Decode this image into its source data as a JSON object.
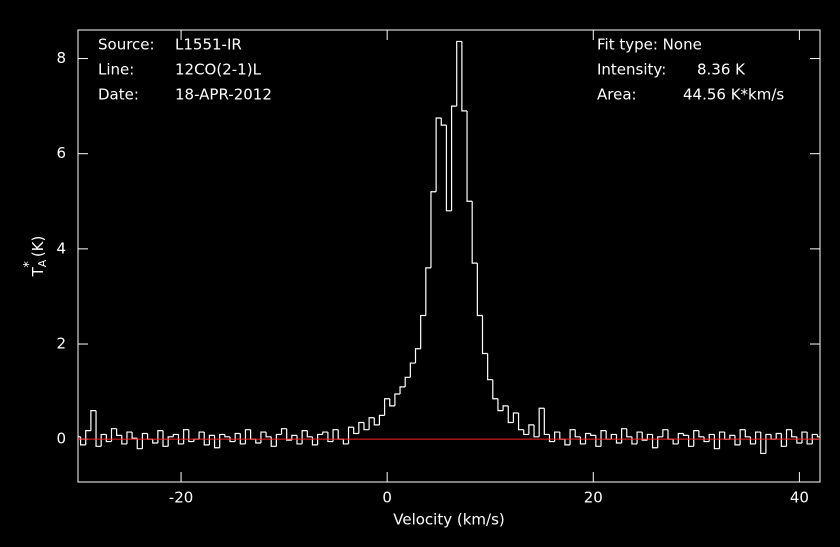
{
  "chart_data": {
    "type": "step",
    "xlabel": "Velocity (km/s)",
    "ylabel": {
      "main": "T",
      "sub": "A",
      "sup": "*",
      "unit": "(K)"
    },
    "annotations": {
      "left": [
        {
          "label": "Source:",
          "value": "L1551-IR"
        },
        {
          "label": "Line:",
          "value": "12CO(2-1)L"
        },
        {
          "label": "Date:",
          "value": "18-APR-2012"
        }
      ],
      "fit": "Fit type: None",
      "right": [
        {
          "label": "Intensity:",
          "value": "8.36 K"
        },
        {
          "label": "Area:",
          "value": "44.56 K*km/s"
        }
      ]
    },
    "xlim": [
      -30,
      42
    ],
    "ylim": [
      -0.9,
      8.6
    ],
    "xticks": [
      -20,
      0,
      20,
      40
    ],
    "yticks": [
      0,
      2,
      4,
      6,
      8
    ],
    "baseline": 0,
    "baseline_color": "#ff2020",
    "series": [
      {
        "color": "#ffffff",
        "x": [
          -30,
          -29.5,
          -29,
          -28.5,
          -28,
          -27.5,
          -27,
          -26.5,
          -26,
          -25.5,
          -25,
          -24.5,
          -24,
          -23.5,
          -23,
          -22.5,
          -22,
          -21.5,
          -21,
          -20.5,
          -20,
          -19.5,
          -19,
          -18.5,
          -18,
          -17.5,
          -17,
          -16.5,
          -16,
          -15.5,
          -15,
          -14.5,
          -14,
          -13.5,
          -13,
          -12.5,
          -12,
          -11.5,
          -11,
          -10.5,
          -10,
          -9.5,
          -9,
          -8.5,
          -8,
          -7.5,
          -7,
          -6.5,
          -6,
          -5.5,
          -5,
          -4.5,
          -4,
          -3.5,
          -3,
          -2.5,
          -2,
          -1.5,
          -1,
          -0.5,
          0,
          0.5,
          1,
          1.5,
          2,
          2.5,
          3,
          3.5,
          4,
          4.5,
          5,
          5.5,
          6,
          6.5,
          7,
          7.5,
          8,
          8.5,
          9,
          9.5,
          10,
          10.5,
          11,
          11.5,
          12,
          12.5,
          13,
          13.5,
          14,
          14.5,
          15,
          15.5,
          16,
          16.5,
          17,
          17.5,
          18,
          18.5,
          19,
          19.5,
          20,
          20.5,
          21,
          21.5,
          22,
          22.5,
          23,
          23.5,
          24,
          24.5,
          25,
          25.5,
          26,
          26.5,
          27,
          27.5,
          28,
          28.5,
          29,
          29.5,
          30,
          30.5,
          31,
          31.5,
          32,
          32.5,
          33,
          33.5,
          34,
          34.5,
          35,
          35.5,
          36,
          36.5,
          37,
          37.5,
          38,
          38.5,
          39,
          39.5,
          40,
          40.5,
          41,
          41.5,
          42
        ],
        "values": [
          0.05,
          -0.12,
          0.18,
          0.6,
          -0.15,
          0.1,
          -0.05,
          0.22,
          0.08,
          -0.1,
          0.15,
          0.02,
          -0.2,
          0.12,
          0.0,
          -0.08,
          0.18,
          -0.15,
          0.05,
          0.1,
          -0.1,
          0.2,
          -0.05,
          0.0,
          0.15,
          -0.12,
          0.08,
          -0.18,
          0.1,
          0.05,
          -0.05,
          0.12,
          -0.1,
          0.2,
          0.0,
          -0.08,
          0.15,
          0.05,
          -0.15,
          0.1,
          0.22,
          -0.02,
          0.08,
          -0.1,
          0.18,
          0.05,
          -0.12,
          0.1,
          0.15,
          -0.05,
          0.2,
          0.0,
          -0.1,
          0.25,
          0.12,
          0.35,
          0.2,
          0.45,
          0.3,
          0.5,
          0.85,
          0.7,
          0.95,
          1.1,
          1.3,
          1.6,
          1.9,
          2.6,
          3.6,
          5.2,
          6.75,
          6.6,
          4.8,
          7.0,
          8.36,
          6.9,
          5.0,
          3.7,
          2.6,
          1.8,
          1.25,
          0.85,
          0.6,
          0.7,
          0.35,
          0.55,
          0.2,
          0.1,
          0.3,
          0.05,
          0.65,
          0.1,
          -0.05,
          0.15,
          0.0,
          -0.12,
          0.2,
          0.05,
          -0.1,
          0.12,
          0.08,
          -0.15,
          0.18,
          0.0,
          0.1,
          -0.08,
          0.22,
          0.05,
          -0.1,
          0.15,
          -0.02,
          0.1,
          -0.18,
          0.05,
          0.2,
          0.0,
          -0.1,
          0.12,
          0.08,
          -0.15,
          0.18,
          0.05,
          -0.05,
          0.1,
          -0.2,
          0.15,
          0.0,
          0.08,
          -0.12,
          0.2,
          0.05,
          -0.1,
          0.15,
          -0.3,
          0.1,
          0.0,
          0.12,
          -0.15,
          0.2,
          0.05,
          -0.08,
          0.15,
          -0.1,
          0.1,
          0.05
        ]
      }
    ]
  }
}
